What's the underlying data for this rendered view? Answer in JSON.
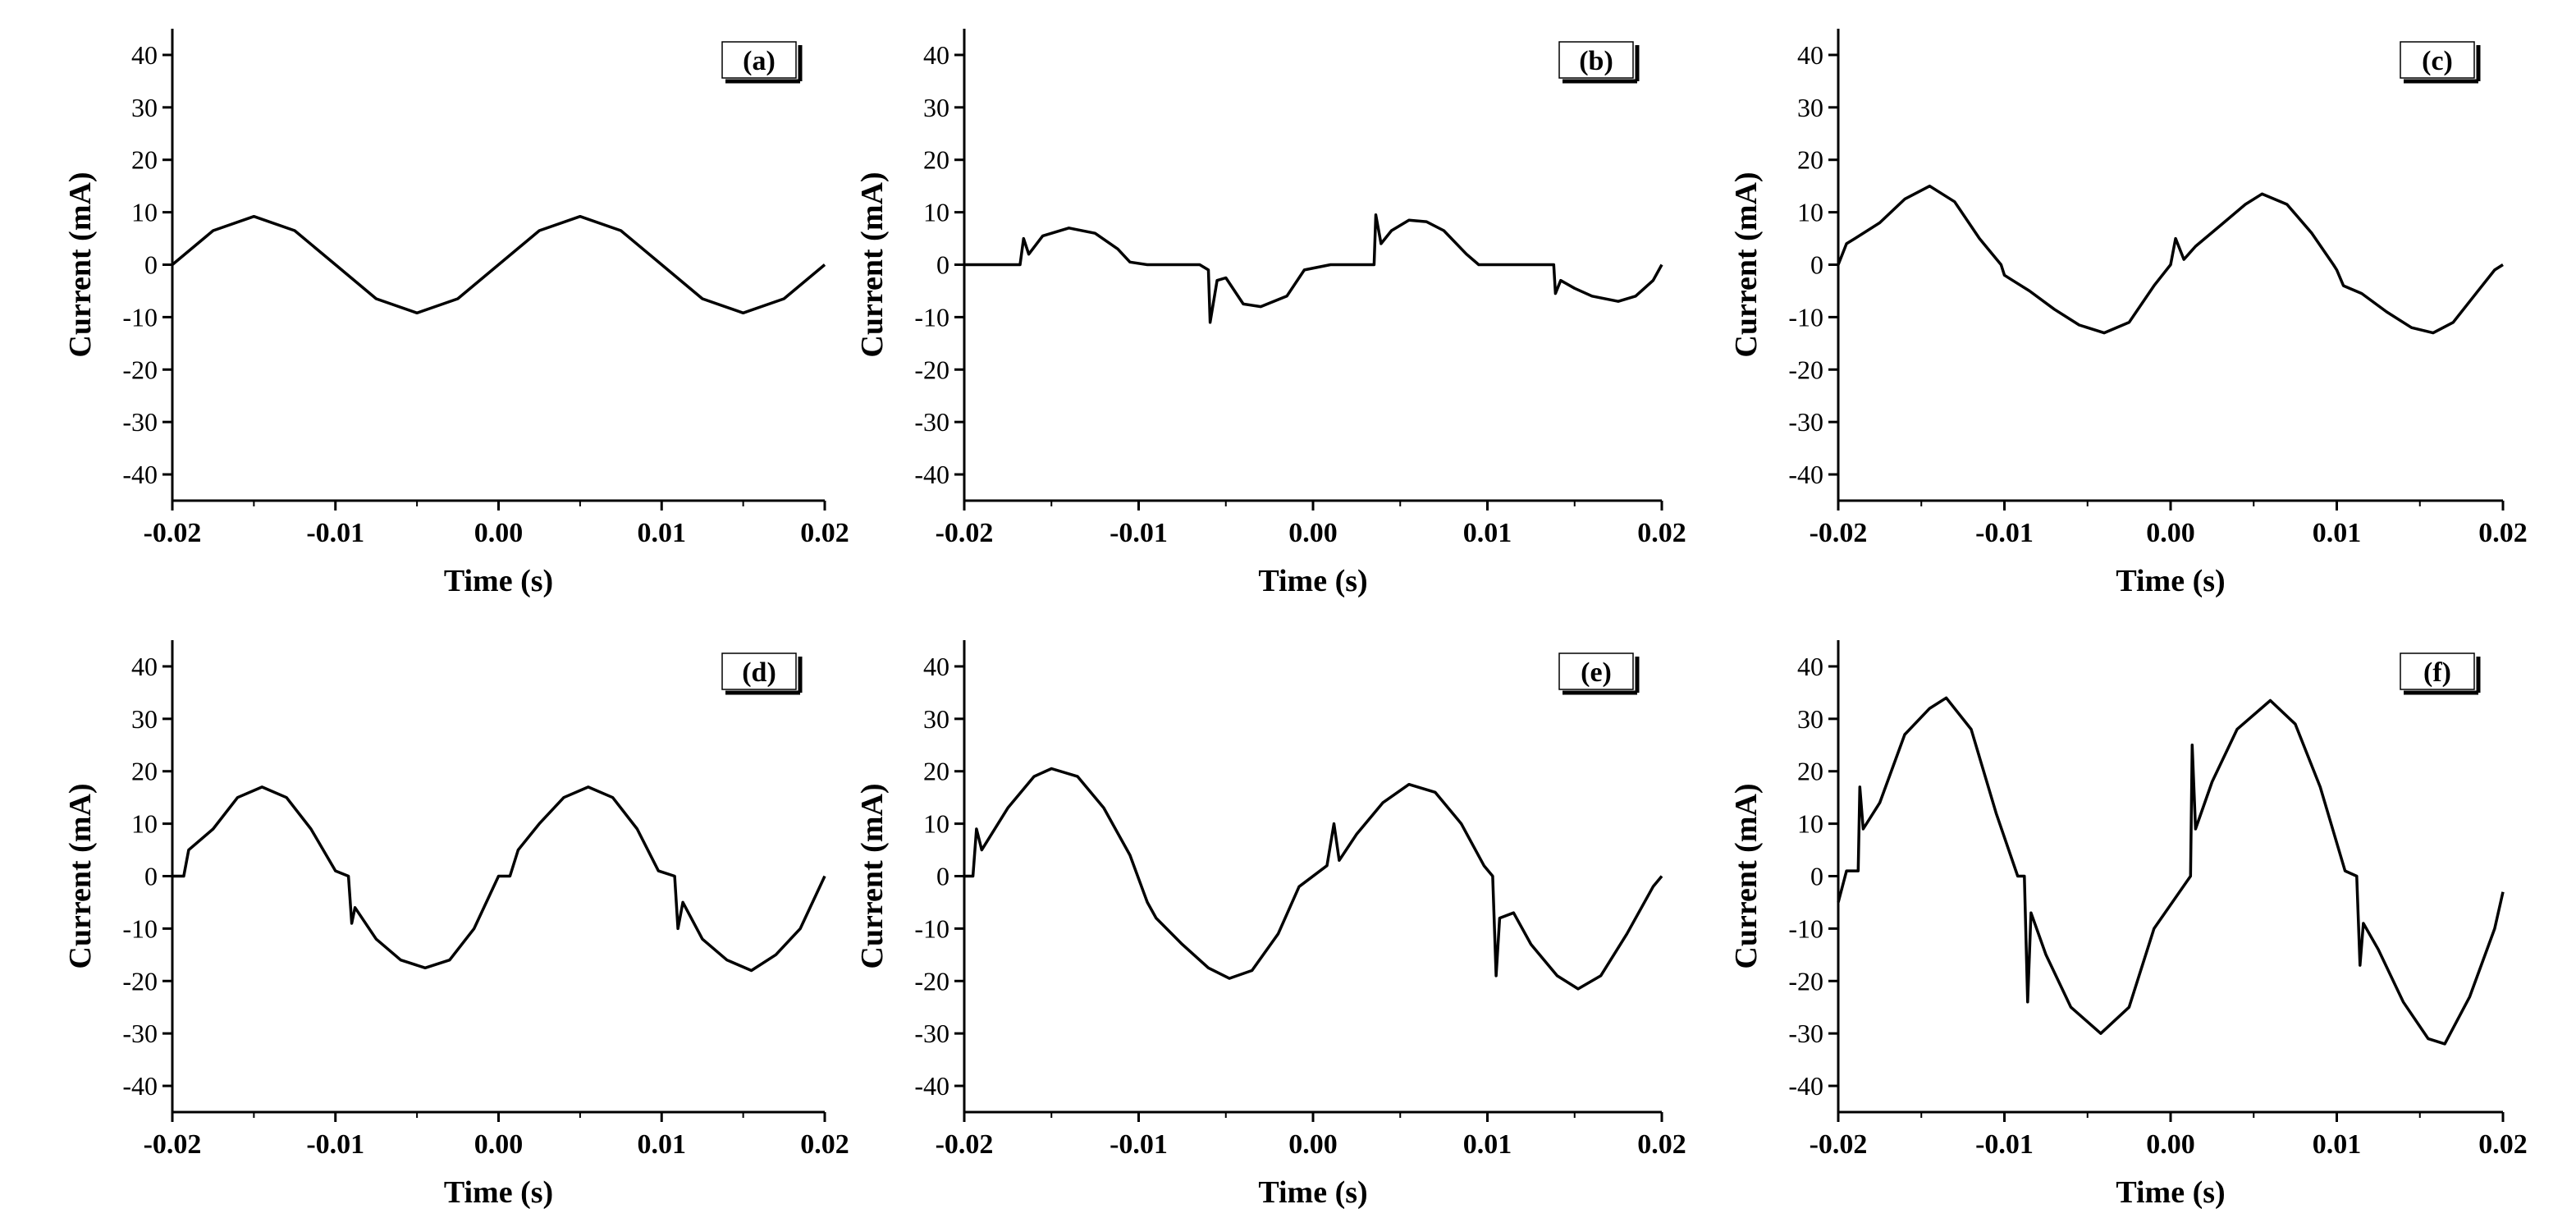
{
  "figure": {
    "line_color": "#000000",
    "background": "#ffffff"
  },
  "chart_data": [
    {
      "type": "line",
      "panel_label": "(a)",
      "xlabel": "Time (s)",
      "ylabel": "Current (mA)",
      "xlim": [
        -0.02,
        0.02
      ],
      "ylim": [
        -45,
        45
      ],
      "xticks": [
        -0.02,
        -0.01,
        0.0,
        0.01,
        0.02
      ],
      "xtick_labels": [
        "-0.02",
        "-0.01",
        "0.00",
        "0.01",
        "0.02"
      ],
      "yticks": [
        -40,
        -30,
        -20,
        -10,
        0,
        10,
        20,
        30,
        40
      ],
      "ytick_labels": [
        "-40",
        "-30",
        "-20",
        "-10",
        "0",
        "10",
        "20",
        "30",
        "40"
      ],
      "series": [
        {
          "name": "current",
          "x": [
            -0.02,
            -0.0175,
            -0.015,
            -0.0125,
            -0.01,
            -0.0075,
            -0.005,
            -0.0025,
            0.0,
            0.0025,
            0.005,
            0.0075,
            0.01,
            0.0125,
            0.015,
            0.0175,
            0.02
          ],
          "y": [
            0,
            6.5,
            9.2,
            6.5,
            0,
            -6.5,
            -9.2,
            -6.5,
            0,
            6.5,
            9.2,
            6.5,
            0,
            -6.5,
            -9.2,
            -6.5,
            0
          ]
        }
      ]
    },
    {
      "type": "line",
      "panel_label": "(b)",
      "xlabel": "Time (s)",
      "ylabel": "Current (mA)",
      "xlim": [
        -0.02,
        0.02
      ],
      "ylim": [
        -45,
        45
      ],
      "xticks": [
        -0.02,
        -0.01,
        0.0,
        0.01,
        0.02
      ],
      "xtick_labels": [
        "-0.02",
        "-0.01",
        "0.00",
        "0.01",
        "0.02"
      ],
      "yticks": [
        -40,
        -30,
        -20,
        -10,
        0,
        10,
        20,
        30,
        40
      ],
      "ytick_labels": [
        "-40",
        "-30",
        "-20",
        "-10",
        "0",
        "10",
        "20",
        "30",
        "40"
      ],
      "series": [
        {
          "name": "current",
          "x": [
            -0.02,
            -0.0168,
            -0.0166,
            -0.0163,
            -0.0155,
            -0.014,
            -0.0125,
            -0.0112,
            -0.0105,
            -0.0095,
            -0.0065,
            -0.006,
            -0.0059,
            -0.0055,
            -0.005,
            -0.004,
            -0.003,
            -0.0015,
            -0.0005,
            0.001,
            0.0035,
            0.0036,
            0.0039,
            0.0045,
            0.0055,
            0.0065,
            0.0075,
            0.0088,
            0.0095,
            0.0105,
            0.0138,
            0.0139,
            0.0142,
            0.015,
            0.016,
            0.0175,
            0.0185,
            0.0195,
            0.02
          ],
          "y": [
            0,
            0,
            5,
            2,
            5.5,
            7,
            6,
            3,
            0.5,
            0,
            0,
            -1,
            -11,
            -3,
            -2.5,
            -7.5,
            -8,
            -6,
            -1,
            0,
            0,
            9.5,
            4,
            6.5,
            8.5,
            8.2,
            6.5,
            2,
            0,
            0,
            0,
            -5.5,
            -3,
            -4.5,
            -6,
            -7,
            -6,
            -3,
            0
          ]
        }
      ]
    },
    {
      "type": "line",
      "panel_label": "(c)",
      "xlabel": "Time (s)",
      "ylabel": "Current (mA)",
      "xlim": [
        -0.02,
        0.02
      ],
      "ylim": [
        -45,
        45
      ],
      "xticks": [
        -0.02,
        -0.01,
        0.0,
        0.01,
        0.02
      ],
      "xtick_labels": [
        "-0.02",
        "-0.01",
        "0.00",
        "0.01",
        "0.02"
      ],
      "yticks": [
        -40,
        -30,
        -20,
        -10,
        0,
        10,
        20,
        30,
        40
      ],
      "ytick_labels": [
        "-40",
        "-30",
        "-20",
        "-10",
        "0",
        "10",
        "20",
        "30",
        "40"
      ],
      "series": [
        {
          "name": "current",
          "x": [
            -0.02,
            -0.0195,
            -0.019,
            -0.0175,
            -0.016,
            -0.0145,
            -0.013,
            -0.0115,
            -0.0102,
            -0.01,
            -0.0095,
            -0.0085,
            -0.007,
            -0.0055,
            -0.004,
            -0.0025,
            -0.001,
            0.0,
            0.0003,
            0.0008,
            0.0015,
            0.003,
            0.0045,
            0.0055,
            0.007,
            0.0085,
            0.0098,
            0.01,
            0.0104,
            0.0115,
            0.013,
            0.0145,
            0.0158,
            0.017,
            0.0185,
            0.0195,
            0.02
          ],
          "y": [
            0,
            4,
            5,
            8,
            12.5,
            15,
            12,
            5,
            0,
            -2,
            -3,
            -5,
            -8.5,
            -11.5,
            -13,
            -11,
            -4,
            0,
            5,
            1,
            3.5,
            7.5,
            11.5,
            13.5,
            11.5,
            6,
            0,
            -1,
            -4,
            -5.5,
            -9,
            -12,
            -13,
            -11,
            -5,
            -1,
            0
          ]
        }
      ]
    },
    {
      "type": "line",
      "panel_label": "(d)",
      "xlabel": "Time (s)",
      "ylabel": "Current (mA)",
      "xlim": [
        -0.02,
        0.02
      ],
      "ylim": [
        -45,
        45
      ],
      "xticks": [
        -0.02,
        -0.01,
        0.0,
        0.01,
        0.02
      ],
      "xtick_labels": [
        "-0.02",
        "-0.01",
        "0.00",
        "0.01",
        "0.02"
      ],
      "yticks": [
        -40,
        -30,
        -20,
        -10,
        0,
        10,
        20,
        30,
        40
      ],
      "ytick_labels": [
        "-40",
        "-30",
        "-20",
        "-10",
        "0",
        "10",
        "20",
        "30",
        "40"
      ],
      "series": [
        {
          "name": "current",
          "x": [
            -0.02,
            -0.0193,
            -0.019,
            -0.0175,
            -0.016,
            -0.0145,
            -0.013,
            -0.0115,
            -0.01,
            -0.0092,
            -0.009,
            -0.0088,
            -0.0075,
            -0.006,
            -0.0045,
            -0.003,
            -0.0015,
            0.0,
            0.0007,
            0.0012,
            0.0025,
            0.004,
            0.0055,
            0.007,
            0.0085,
            0.0098,
            0.0108,
            0.011,
            0.0113,
            0.0125,
            0.014,
            0.0155,
            0.017,
            0.0185,
            0.02
          ],
          "y": [
            0,
            0,
            5,
            9,
            15,
            17,
            15,
            9,
            1,
            0,
            -9,
            -6,
            -12,
            -16,
            -17.5,
            -16,
            -10,
            0,
            0,
            5,
            10,
            15,
            17,
            15,
            9,
            1,
            0,
            -10,
            -5,
            -12,
            -16,
            -18,
            -15,
            -10,
            0
          ]
        }
      ]
    },
    {
      "type": "line",
      "panel_label": "(e)",
      "xlabel": "Time (s)",
      "ylabel": "Current (mA)",
      "xlim": [
        -0.02,
        0.02
      ],
      "ylim": [
        -45,
        45
      ],
      "xticks": [
        -0.02,
        -0.01,
        0.0,
        0.01,
        0.02
      ],
      "xtick_labels": [
        "-0.02",
        "-0.01",
        "0.00",
        "0.01",
        "0.02"
      ],
      "yticks": [
        -40,
        -30,
        -20,
        -10,
        0,
        10,
        20,
        30,
        40
      ],
      "ytick_labels": [
        "-40",
        "-30",
        "-20",
        "-10",
        "0",
        "10",
        "20",
        "30",
        "40"
      ],
      "series": [
        {
          "name": "current",
          "x": [
            -0.02,
            -0.0195,
            -0.0193,
            -0.019,
            -0.0175,
            -0.016,
            -0.015,
            -0.0135,
            -0.012,
            -0.0105,
            -0.0095,
            -0.009,
            -0.0075,
            -0.006,
            -0.0048,
            -0.0035,
            -0.002,
            -0.0008,
            0.0008,
            0.0012,
            0.0015,
            0.0025,
            0.004,
            0.0055,
            0.007,
            0.0085,
            0.0098,
            0.0103,
            0.0105,
            0.0107,
            0.0115,
            0.0125,
            0.014,
            0.0152,
            0.0165,
            0.018,
            0.0195,
            0.02
          ],
          "y": [
            0,
            0,
            9,
            5,
            13,
            19,
            20.5,
            19,
            13,
            4,
            -5,
            -8,
            -13,
            -17.5,
            -19.5,
            -18,
            -11,
            -2,
            2,
            10,
            3,
            8,
            14,
            17.5,
            16,
            10,
            2,
            0,
            -19,
            -8,
            -7,
            -13,
            -19,
            -21.5,
            -19,
            -11,
            -2,
            0
          ]
        }
      ]
    },
    {
      "type": "line",
      "panel_label": "(f)",
      "xlabel": "Time (s)",
      "ylabel": "Current (mA)",
      "xlim": [
        -0.02,
        0.02
      ],
      "ylim": [
        -45,
        45
      ],
      "xticks": [
        -0.02,
        -0.01,
        0.0,
        0.01,
        0.02
      ],
      "xtick_labels": [
        "-0.02",
        "-0.01",
        "0.00",
        "0.01",
        "0.02"
      ],
      "yticks": [
        -40,
        -30,
        -20,
        -10,
        0,
        10,
        20,
        30,
        40
      ],
      "ytick_labels": [
        "-40",
        "-30",
        "-20",
        "-10",
        "0",
        "10",
        "20",
        "30",
        "40"
      ],
      "series": [
        {
          "name": "current",
          "x": [
            -0.02,
            -0.0195,
            -0.0188,
            -0.0187,
            -0.0185,
            -0.0175,
            -0.016,
            -0.0145,
            -0.0135,
            -0.012,
            -0.0105,
            -0.0092,
            -0.0088,
            -0.0086,
            -0.0084,
            -0.0075,
            -0.006,
            -0.0042,
            -0.0025,
            -0.001,
            0.0012,
            0.0013,
            0.0015,
            0.0025,
            0.004,
            0.006,
            0.0075,
            0.009,
            0.0105,
            0.0112,
            0.0114,
            0.0116,
            0.0125,
            0.014,
            0.0155,
            0.0165,
            0.018,
            0.0195,
            0.02
          ],
          "y": [
            -5,
            1,
            1,
            17,
            9,
            14,
            27,
            32,
            34,
            28,
            12,
            0,
            0,
            -24,
            -7,
            -15,
            -25,
            -30,
            -25,
            -10,
            0,
            25,
            9,
            18,
            28,
            33.5,
            29,
            17,
            1,
            0,
            -17,
            -9,
            -14,
            -24,
            -31,
            -32,
            -23,
            -10,
            -3
          ]
        }
      ]
    }
  ]
}
